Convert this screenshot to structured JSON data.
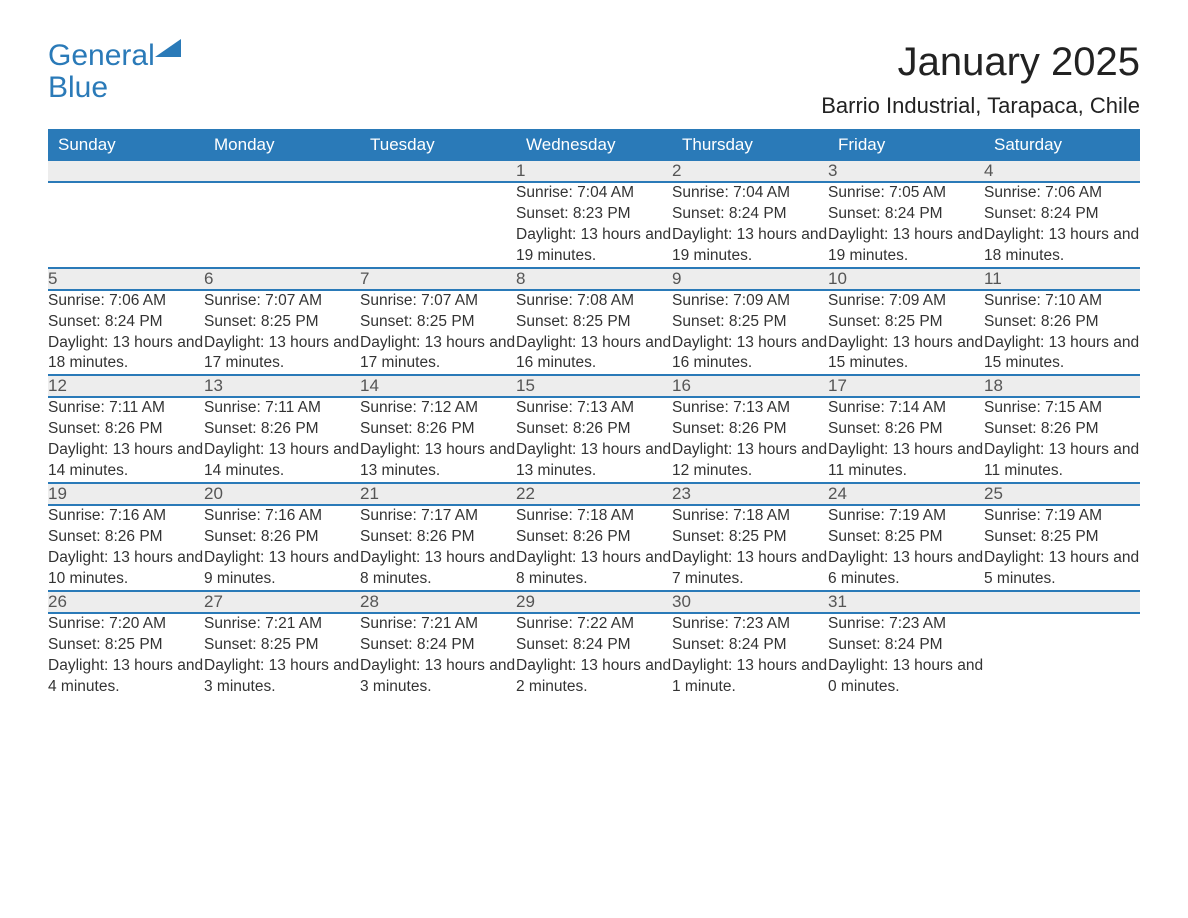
{
  "brand": {
    "word1": "General",
    "word2": "Blue",
    "color": "#2a7ab8"
  },
  "title": "January 2025",
  "location": "Barrio Industrial, Tarapaca, Chile",
  "columns": [
    "Sunday",
    "Monday",
    "Tuesday",
    "Wednesday",
    "Thursday",
    "Friday",
    "Saturday"
  ],
  "header_bg": "#2a7ab8",
  "header_fg": "#ffffff",
  "daynum_bg": "#ededed",
  "row_border": "#2a7ab8",
  "weeks": [
    [
      null,
      null,
      null,
      {
        "n": "1",
        "sr": "7:04 AM",
        "ss": "8:23 PM",
        "dl": "13 hours and 19 minutes."
      },
      {
        "n": "2",
        "sr": "7:04 AM",
        "ss": "8:24 PM",
        "dl": "13 hours and 19 minutes."
      },
      {
        "n": "3",
        "sr": "7:05 AM",
        "ss": "8:24 PM",
        "dl": "13 hours and 19 minutes."
      },
      {
        "n": "4",
        "sr": "7:06 AM",
        "ss": "8:24 PM",
        "dl": "13 hours and 18 minutes."
      }
    ],
    [
      {
        "n": "5",
        "sr": "7:06 AM",
        "ss": "8:24 PM",
        "dl": "13 hours and 18 minutes."
      },
      {
        "n": "6",
        "sr": "7:07 AM",
        "ss": "8:25 PM",
        "dl": "13 hours and 17 minutes."
      },
      {
        "n": "7",
        "sr": "7:07 AM",
        "ss": "8:25 PM",
        "dl": "13 hours and 17 minutes."
      },
      {
        "n": "8",
        "sr": "7:08 AM",
        "ss": "8:25 PM",
        "dl": "13 hours and 16 minutes."
      },
      {
        "n": "9",
        "sr": "7:09 AM",
        "ss": "8:25 PM",
        "dl": "13 hours and 16 minutes."
      },
      {
        "n": "10",
        "sr": "7:09 AM",
        "ss": "8:25 PM",
        "dl": "13 hours and 15 minutes."
      },
      {
        "n": "11",
        "sr": "7:10 AM",
        "ss": "8:26 PM",
        "dl": "13 hours and 15 minutes."
      }
    ],
    [
      {
        "n": "12",
        "sr": "7:11 AM",
        "ss": "8:26 PM",
        "dl": "13 hours and 14 minutes."
      },
      {
        "n": "13",
        "sr": "7:11 AM",
        "ss": "8:26 PM",
        "dl": "13 hours and 14 minutes."
      },
      {
        "n": "14",
        "sr": "7:12 AM",
        "ss": "8:26 PM",
        "dl": "13 hours and 13 minutes."
      },
      {
        "n": "15",
        "sr": "7:13 AM",
        "ss": "8:26 PM",
        "dl": "13 hours and 13 minutes."
      },
      {
        "n": "16",
        "sr": "7:13 AM",
        "ss": "8:26 PM",
        "dl": "13 hours and 12 minutes."
      },
      {
        "n": "17",
        "sr": "7:14 AM",
        "ss": "8:26 PM",
        "dl": "13 hours and 11 minutes."
      },
      {
        "n": "18",
        "sr": "7:15 AM",
        "ss": "8:26 PM",
        "dl": "13 hours and 11 minutes."
      }
    ],
    [
      {
        "n": "19",
        "sr": "7:16 AM",
        "ss": "8:26 PM",
        "dl": "13 hours and 10 minutes."
      },
      {
        "n": "20",
        "sr": "7:16 AM",
        "ss": "8:26 PM",
        "dl": "13 hours and 9 minutes."
      },
      {
        "n": "21",
        "sr": "7:17 AM",
        "ss": "8:26 PM",
        "dl": "13 hours and 8 minutes."
      },
      {
        "n": "22",
        "sr": "7:18 AM",
        "ss": "8:26 PM",
        "dl": "13 hours and 8 minutes."
      },
      {
        "n": "23",
        "sr": "7:18 AM",
        "ss": "8:25 PM",
        "dl": "13 hours and 7 minutes."
      },
      {
        "n": "24",
        "sr": "7:19 AM",
        "ss": "8:25 PM",
        "dl": "13 hours and 6 minutes."
      },
      {
        "n": "25",
        "sr": "7:19 AM",
        "ss": "8:25 PM",
        "dl": "13 hours and 5 minutes."
      }
    ],
    [
      {
        "n": "26",
        "sr": "7:20 AM",
        "ss": "8:25 PM",
        "dl": "13 hours and 4 minutes."
      },
      {
        "n": "27",
        "sr": "7:21 AM",
        "ss": "8:25 PM",
        "dl": "13 hours and 3 minutes."
      },
      {
        "n": "28",
        "sr": "7:21 AM",
        "ss": "8:24 PM",
        "dl": "13 hours and 3 minutes."
      },
      {
        "n": "29",
        "sr": "7:22 AM",
        "ss": "8:24 PM",
        "dl": "13 hours and 2 minutes."
      },
      {
        "n": "30",
        "sr": "7:23 AM",
        "ss": "8:24 PM",
        "dl": "13 hours and 1 minute."
      },
      {
        "n": "31",
        "sr": "7:23 AM",
        "ss": "8:24 PM",
        "dl": "13 hours and 0 minutes."
      },
      null
    ]
  ],
  "labels": {
    "sunrise": "Sunrise: ",
    "sunset": "Sunset: ",
    "daylight": "Daylight: "
  }
}
